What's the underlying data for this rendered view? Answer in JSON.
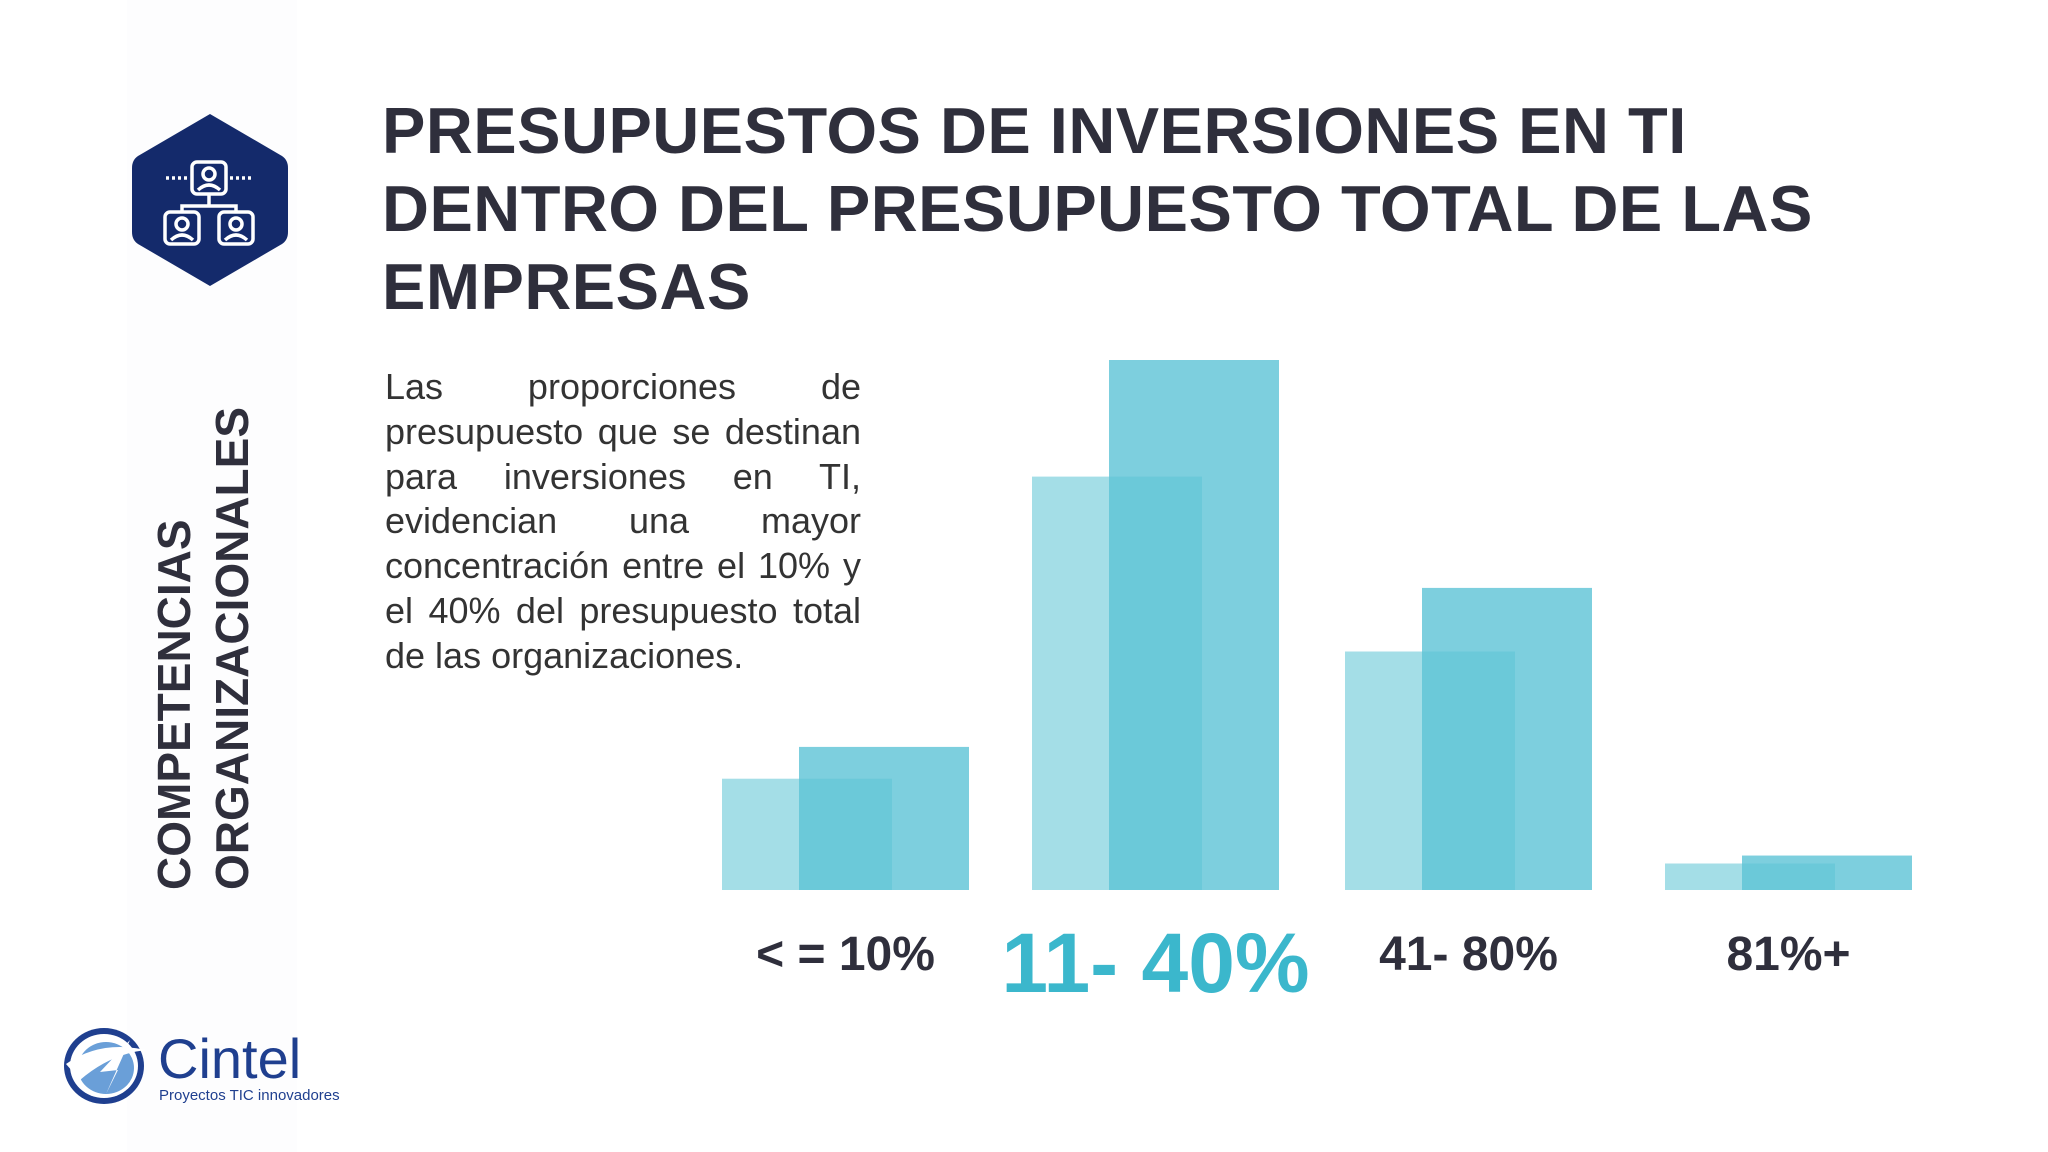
{
  "header": {
    "title_lines": [
      "PRESUPUESTOS DE INVERSIONES EN TI",
      "DENTRO DEL PRESUPUESTO TOTAL DE LAS",
      "EMPRESAS"
    ]
  },
  "sidebar": {
    "badge_icon": "org-chart-icon",
    "label_lines": [
      "COMPETENCIAS",
      "ORGANIZACIONALES"
    ]
  },
  "body": {
    "paragraph": "Las proporciones de presupuesto que se destinan para inversiones en TI, evidencian una mayor concentración entre el 10% y el 40% del presupuesto total de las organizaciones."
  },
  "logo": {
    "name": "Cintel",
    "tagline": "Proyectos TIC innovadores"
  },
  "colors": {
    "title": "#2f2f3c",
    "badge": "#142a6b",
    "series_back": "#9fdce6",
    "series_front": "#5cc3d6",
    "highlight_label": "#3bb7cc"
  },
  "chart_data": {
    "type": "bar",
    "categories": [
      "< = 10%",
      "11- 40%",
      "41- 80%",
      "81%+"
    ],
    "highlight_category": "11- 40%",
    "series": [
      {
        "values": [
          21,
          78,
          45,
          5
        ]
      },
      {
        "values": [
          27,
          100,
          57,
          6.5
        ]
      }
    ],
    "ylim": [
      0,
      100
    ],
    "grid": false,
    "legend": "none"
  }
}
